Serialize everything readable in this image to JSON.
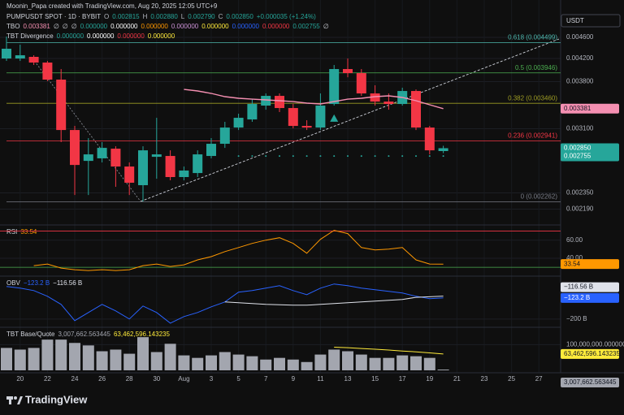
{
  "header": {
    "attribution": "Moonin_Papa created with TradingView.com, Aug 20, 2025 12:05 UTC+9",
    "currency": "USDT",
    "logo": "TradingView",
    "legend": [
      [
        {
          "text": "PUMPUSDT SPOT · 1D · BYBIT",
          "color": "#d1d4dc"
        },
        {
          "text": "O",
          "color": "#b2b5be"
        },
        {
          "text": "0.002815",
          "color": "#26a69a"
        },
        {
          "text": "H",
          "color": "#b2b5be"
        },
        {
          "text": "0.002880",
          "color": "#26a69a"
        },
        {
          "text": "L",
          "color": "#b2b5be"
        },
        {
          "text": "0.002790",
          "color": "#26a69a"
        },
        {
          "text": "C",
          "color": "#b2b5be"
        },
        {
          "text": "0.002850",
          "color": "#26a69a"
        },
        {
          "text": "+0.000035 (+1.24%)",
          "color": "#26a69a"
        }
      ],
      [
        {
          "text": "TBO",
          "color": "#d1d4dc"
        },
        {
          "text": "0.003381",
          "color": "#f48fb1"
        },
        {
          "text": "∅",
          "color": "#d1d4dc"
        },
        {
          "text": "∅",
          "color": "#d1d4dc"
        },
        {
          "text": "∅",
          "color": "#d1d4dc"
        },
        {
          "text": "0.000000",
          "color": "#26a69a"
        },
        {
          "text": "0.000000",
          "color": "#ffffff"
        },
        {
          "text": "0.000000",
          "color": "#ff9800"
        },
        {
          "text": "0.000000",
          "color": "#ce93d8"
        },
        {
          "text": "0.000000",
          "color": "#ffeb3b"
        },
        {
          "text": "0.000000",
          "color": "#2962ff"
        },
        {
          "text": "0.000000",
          "color": "#f23645"
        },
        {
          "text": "0.002755",
          "color": "#26a69a"
        },
        {
          "text": "∅",
          "color": "#d1d4dc"
        }
      ],
      [
        {
          "text": "TBT Divergence",
          "color": "#d1d4dc"
        },
        {
          "text": "0.000000",
          "color": "#26a69a"
        },
        {
          "text": "0.000000",
          "color": "#ffffff"
        },
        {
          "text": "0.000000",
          "color": "#f23645"
        },
        {
          "text": "0.000000",
          "color": "#ffeb3b"
        }
      ]
    ]
  },
  "chart_data": [
    {
      "type": "candlestick",
      "log_scale": true,
      "grid": true,
      "ylim": [
        0.00206,
        0.00522
      ],
      "yticks": [
        {
          "value": 0.0046,
          "label": "0.004600"
        },
        {
          "value": 0.0042,
          "label": "0.004200"
        },
        {
          "value": 0.0038,
          "label": "0.003800"
        },
        {
          "value": 0.0031,
          "label": "0.003100"
        },
        {
          "value": 0.00235,
          "label": "0.002350"
        },
        {
          "value": 0.00219,
          "label": "0.002190"
        }
      ],
      "x_labels": [
        "20",
        "22",
        "24",
        "26",
        "28",
        "30",
        "Aug",
        "3",
        "5",
        "7",
        "9",
        "11",
        "13",
        "15",
        "17",
        "19",
        "21",
        "23",
        "25",
        "27"
      ],
      "up_color": "#26a69a",
      "down_color": "#f23645",
      "open": [
        0.004199,
        0.004199,
        0.004229,
        0.004126,
        0.003833,
        0.003083,
        0.002698,
        0.002728,
        0.002844,
        0.002633,
        0.002429,
        0.002746,
        0.002756,
        0.002516,
        0.00256,
        0.002756,
        0.002905,
        0.003116,
        0.003227,
        0.003426,
        0.003573,
        0.00339,
        0.003138,
        0.003116,
        0.00345,
        0.004012,
        0.003942,
        0.003611,
        0.003486,
        0.00345,
        0.003649,
        0.003116,
        0.002815
      ],
      "high": [
        0.004616,
        0.004457,
        0.004258,
        0.004155,
        0.004012,
        0.003138,
        0.002977,
        0.002926,
        0.002874,
        0.00268,
        0.002874,
        0.00325,
        0.002824,
        0.002633,
        0.002824,
        0.002977,
        0.003194,
        0.003308,
        0.003523,
        0.003611,
        0.003611,
        0.00345,
        0.003216,
        0.003611,
        0.004083,
        0.004199,
        0.004012,
        0.00374,
        0.003611,
        0.003701,
        0.003674,
        0.003138,
        0.00288
      ],
      "low": [
        0.004155,
        0.004155,
        0.004083,
        0.003807,
        0.002926,
        0.002328,
        0.002328,
        0.00268,
        0.002412,
        0.002328,
        0.002264,
        0.002498,
        0.002481,
        0.002481,
        0.002516,
        0.002728,
        0.002854,
        0.003083,
        0.003194,
        0.003366,
        0.003331,
        0.003105,
        0.003083,
        0.003083,
        0.003426,
        0.003873,
        0.003573,
        0.003426,
        0.003366,
        0.003426,
        0.003083,
        0.002775,
        0.00279
      ],
      "close": [
        0.00438,
        0.004258,
        0.004126,
        0.003833,
        0.003083,
        0.002651,
        0.002775,
        0.002854,
        0.002633,
        0.002455,
        0.002824,
        0.002775,
        0.002516,
        0.002588,
        0.002775,
        0.002905,
        0.003116,
        0.00325,
        0.00345,
        0.003573,
        0.00339,
        0.003138,
        0.003116,
        0.003426,
        0.004012,
        0.003942,
        0.003611,
        0.003486,
        0.00345,
        0.003649,
        0.003116,
        0.002824,
        0.00285
      ],
      "last_label": "0.002850",
      "countdown": "20:54:10",
      "series": [
        {
          "style": "line",
          "color": "#f48fb1",
          "last_label": "0.003381",
          "values": [
            null,
            null,
            null,
            null,
            null,
            null,
            null,
            null,
            null,
            null,
            null,
            null,
            null,
            0.003674,
            0.003649,
            0.003611,
            0.003561,
            0.003536,
            0.003523,
            0.003511,
            0.003499,
            0.003486,
            0.003462,
            0.00345,
            0.003486,
            0.003523,
            0.003536,
            0.003561,
            0.003573,
            0.003548,
            0.003499,
            0.003438,
            0.003381
          ]
        },
        {
          "style": "dots",
          "color": "#26a69a",
          "last_label": "0.002755",
          "values": [
            null,
            null,
            null,
            null,
            null,
            null,
            null,
            null,
            null,
            null,
            null,
            null,
            null,
            null,
            null,
            null,
            null,
            0.002755,
            0.002755,
            0.002755,
            0.002755,
            0.002755,
            0.002755,
            0.002755,
            0.002755,
            0.002755,
            0.002755,
            0.002755,
            0.002755,
            0.002755,
            0.002755,
            0.002755,
            0.002755
          ]
        },
        {
          "style": "triangles",
          "color": "#26a69a",
          "values": [
            null,
            null,
            null,
            null,
            null,
            null,
            null,
            null,
            null,
            null,
            null,
            null,
            null,
            null,
            null,
            null,
            null,
            null,
            null,
            null,
            null,
            null,
            null,
            null,
            0.00324,
            null,
            null,
            null,
            null,
            null,
            null,
            null,
            null
          ]
        }
      ],
      "fib_levels": [
        {
          "value": 0.004499,
          "label": "0.618 (0.004499)",
          "color": "#4db6ac"
        },
        {
          "value": 0.003946,
          "label": "0.5 (0.003946)",
          "color": "#4caf50"
        },
        {
          "value": 0.00346,
          "label": "0.382 (0.003460)",
          "color": "#9e9d24"
        },
        {
          "value": 0.002941,
          "label": "0.236 (0.002941)",
          "color": "#f23645"
        },
        {
          "value": 0.002262,
          "label": "0 (0.002262)",
          "color": "#787b86"
        }
      ]
    },
    {
      "type": "line",
      "title": "RSI",
      "ylim": [
        22,
        75
      ],
      "yticks": [
        {
          "value": 60,
          "label": "60.00"
        },
        {
          "value": 40,
          "label": "40.00"
        }
      ],
      "bands": [
        {
          "value": 70,
          "color": "#f23645"
        },
        {
          "value": 30,
          "color": "#4caf50"
        }
      ],
      "series": [
        {
          "color": "#ff9800",
          "values": [
            null,
            null,
            31.8,
            33.6,
            29.1,
            27.3,
            26.4,
            27.3,
            26.4,
            27.3,
            31.8,
            33.6,
            30.9,
            32.7,
            38.2,
            41.8,
            47.3,
            51.8,
            56.4,
            60.0,
            62.7,
            56.4,
            45.5,
            60.9,
            70.9,
            67.3,
            51.8,
            49.1,
            50.0,
            51.8,
            38.2,
            33.6,
            33.54
          ]
        }
      ]
    },
    {
      "type": "line",
      "title": "OBV",
      "ylim": [
        -227,
        -50
      ],
      "yticks": [
        {
          "value": -200,
          "label": "−200 B"
        }
      ],
      "series": [
        {
          "color": "#2962ff",
          "last_label": "−123.2 B",
          "values": [
            -81.8,
            -87.7,
            -96.6,
            -117.3,
            -146.9,
            -205.9,
            -176.3,
            -146.9,
            -170.4,
            -200.0,
            -152.8,
            -176.3,
            -214.8,
            -191.1,
            -176.3,
            -155.6,
            -137.8,
            -102.3,
            -96.6,
            -87.7,
            -78.8,
            -96.6,
            -111.4,
            -87.7,
            -72.7,
            -78.8,
            -87.7,
            -93.6,
            -99.5,
            -105.4,
            -117.3,
            -126.2,
            -123.2
          ]
        },
        {
          "color": "#e0e3eb",
          "last_label": "−116.56 B",
          "values": [
            null,
            null,
            null,
            null,
            null,
            null,
            null,
            null,
            null,
            null,
            null,
            null,
            null,
            null,
            null,
            null,
            -137.8,
            -140.8,
            -143.7,
            -146.7,
            -148,
            -149.6,
            -149.6,
            -146.7,
            -143.7,
            -140.8,
            -137.8,
            -134.8,
            -131.9,
            -128.9,
            -121,
            -119,
            -116.56
          ]
        }
      ]
    },
    {
      "type": "bar",
      "title": "TBT Base/Quote",
      "ylim": [
        0,
        161000000
      ],
      "yticks": [
        {
          "value": 100000000,
          "label": "100,000,000.000000"
        }
      ],
      "series": [
        {
          "style": "bars",
          "color": "#a3a6af",
          "last_label": "3,007,662.563445",
          "values": [
            87100000,
            80600000,
            87100000,
            119400000,
            119400000,
            106500000,
            96800000,
            74200000,
            80600000,
            64500000,
            129000000,
            71000000,
            103200000,
            58100000,
            48400000,
            58100000,
            71000000,
            61300000,
            54800000,
            41900000,
            48400000,
            41900000,
            32300000,
            61300000,
            80600000,
            74200000,
            61300000,
            48400000,
            48400000,
            58100000,
            54800000,
            48400000,
            3007662.563445
          ]
        },
        {
          "style": "line",
          "color": "#ffeb3b",
          "last_label": "63,462,596.143235",
          "values": [
            null,
            null,
            null,
            null,
            null,
            null,
            null,
            null,
            null,
            null,
            null,
            null,
            null,
            null,
            null,
            null,
            null,
            null,
            null,
            null,
            null,
            null,
            null,
            null,
            90000000,
            88000000,
            85000000,
            82000000,
            79000000,
            75000000,
            72000000,
            68000000,
            63462596.143235
          ]
        }
      ]
    }
  ]
}
